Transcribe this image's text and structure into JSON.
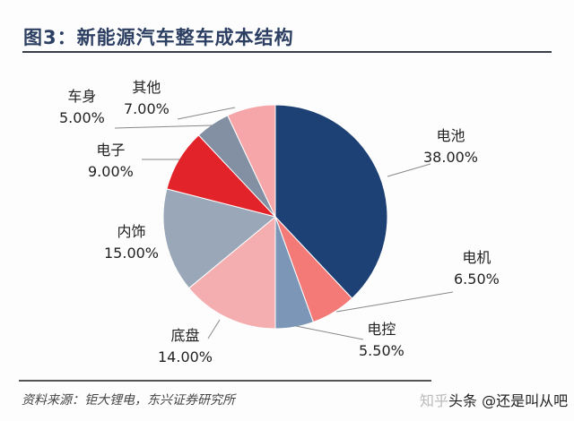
{
  "title": "图3：新能源汽车整车成本结构",
  "source": "资料来源：钜大锂电，东兴证券研究所",
  "watermark": {
    "faint": "知乎",
    "text": "头条 @还是叫从吧"
  },
  "chart_data": {
    "type": "pie",
    "title": "图3：新能源汽车整车成本结构",
    "start": "top, clockwise",
    "slices": [
      {
        "label": "电池",
        "value": 38.0,
        "display": "38.00%",
        "color": "#1d4174"
      },
      {
        "label": "电机",
        "value": 6.5,
        "display": "6.50%",
        "color": "#f47a78"
      },
      {
        "label": "电控",
        "value": 5.5,
        "display": "5.50%",
        "color": "#7b96b6"
      },
      {
        "label": "底盘",
        "value": 14.0,
        "display": "14.00%",
        "color": "#f5aeb0"
      },
      {
        "label": "内饰",
        "value": 15.0,
        "display": "15.00%",
        "color": "#9aa7b8"
      },
      {
        "label": "电子",
        "value": 9.0,
        "display": "9.00%",
        "color": "#e3232a"
      },
      {
        "label": "车身",
        "value": 5.0,
        "display": "5.00%",
        "color": "#8390a3"
      },
      {
        "label": "其他",
        "value": 7.0,
        "display": "7.00%",
        "color": "#f6a6a8"
      }
    ]
  }
}
